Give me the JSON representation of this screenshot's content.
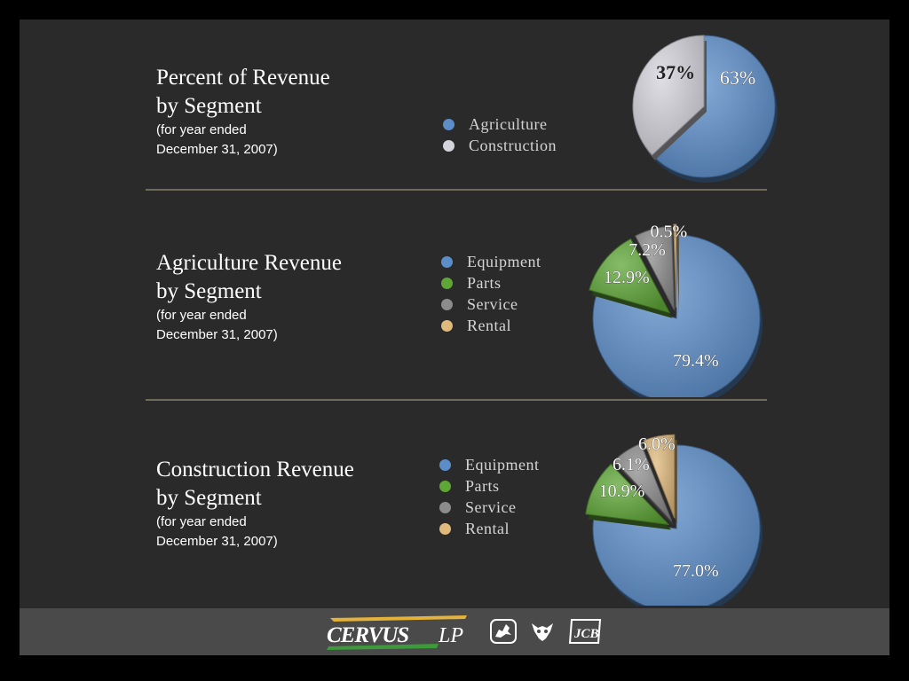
{
  "chart_data": [
    {
      "type": "pie",
      "title": "Percent of Revenue",
      "title_line2": "by Segment",
      "subtitle_line1": "(for year ended",
      "subtitle_line2": "December 31, 2007)",
      "series": [
        {
          "name": "Agriculture",
          "value": 63,
          "label": "63%",
          "color": "#5b8dc9"
        },
        {
          "name": "Construction",
          "value": 37,
          "label": "37%",
          "color": "#d4d4dc"
        }
      ]
    },
    {
      "type": "pie",
      "title": "Agriculture Revenue",
      "title_line2": "by Segment",
      "subtitle_line1": "(for year ended",
      "subtitle_line2": "December 31, 2007)",
      "series": [
        {
          "name": "Equipment",
          "value": 79.4,
          "label": "79.4%",
          "color": "#5b8dc9"
        },
        {
          "name": "Parts",
          "value": 12.9,
          "label": "12.9%",
          "color": "#5ea636"
        },
        {
          "name": "Service",
          "value": 7.2,
          "label": "7.2%",
          "color": "#8c8c8c"
        },
        {
          "name": "Rental",
          "value": 0.5,
          "label": "0.5%",
          "color": "#e0b97c"
        }
      ]
    },
    {
      "type": "pie",
      "title": "Construction Revenue",
      "title_line2": "by Segment",
      "subtitle_line1": "(for year ended",
      "subtitle_line2": "December 31, 2007)",
      "series": [
        {
          "name": "Equipment",
          "value": 77.0,
          "label": "77.0%",
          "color": "#5b8dc9"
        },
        {
          "name": "Parts",
          "value": 10.9,
          "label": "10.9%",
          "color": "#5ea636"
        },
        {
          "name": "Service",
          "value": 6.1,
          "label": "6.1%",
          "color": "#8c8c8c"
        },
        {
          "name": "Rental",
          "value": 6.0,
          "label": "6.0%",
          "color": "#e0b97c"
        }
      ]
    }
  ],
  "footer": {
    "brand": "CERVUS",
    "brand_suffix": "LP",
    "partner_logos": [
      "john-deere-logo",
      "bobcat-logo",
      "jcb-logo"
    ],
    "jcb_text": "JCB"
  }
}
